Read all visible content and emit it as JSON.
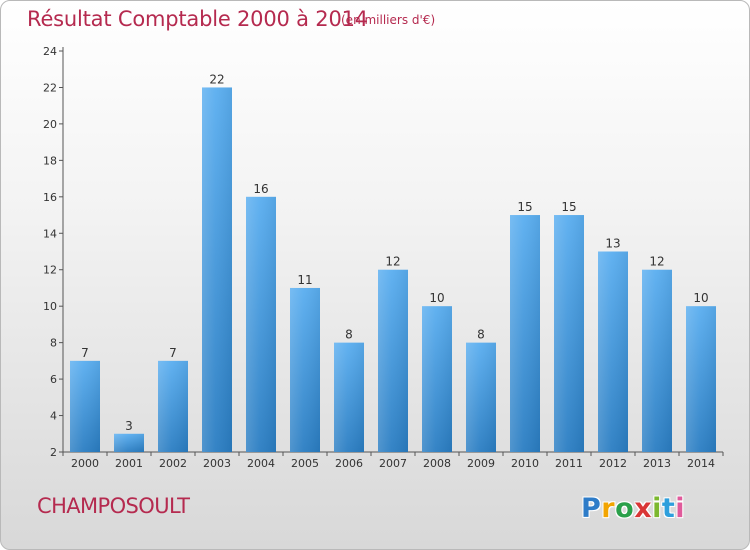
{
  "header": {
    "title": "Résultat Comptable 2000 à 2014",
    "subtitle": "(en milliers d'€)"
  },
  "commune": "CHAMPOSOULT",
  "logo": {
    "text": "Proxiti",
    "letter_colors": [
      "#2e7cc8",
      "#f2a400",
      "#2aa04a",
      "#d93636",
      "#7cb82f",
      "#2e9fdc",
      "#e05a9b"
    ]
  },
  "colors": {
    "bar_light": "#5aaef0",
    "bar_dark": "#2a7dc2",
    "title": "#b52a4f"
  },
  "chart_data": {
    "type": "bar",
    "title": "Résultat Comptable 2000 à 2014",
    "subtitle": "(en milliers d'€)",
    "xlabel": "",
    "ylabel": "",
    "ylim": [
      2,
      24
    ],
    "yticks": [
      2,
      4,
      6,
      8,
      10,
      12,
      14,
      16,
      18,
      20,
      22,
      24
    ],
    "grid": false,
    "categories": [
      "2000",
      "2001",
      "2002",
      "2003",
      "2004",
      "2005",
      "2006",
      "2007",
      "2008",
      "2009",
      "2010",
      "2011",
      "2012",
      "2013",
      "2014"
    ],
    "values": [
      7,
      3,
      7,
      22,
      16,
      11,
      8,
      12,
      10,
      8,
      15,
      15,
      13,
      12,
      10
    ]
  }
}
